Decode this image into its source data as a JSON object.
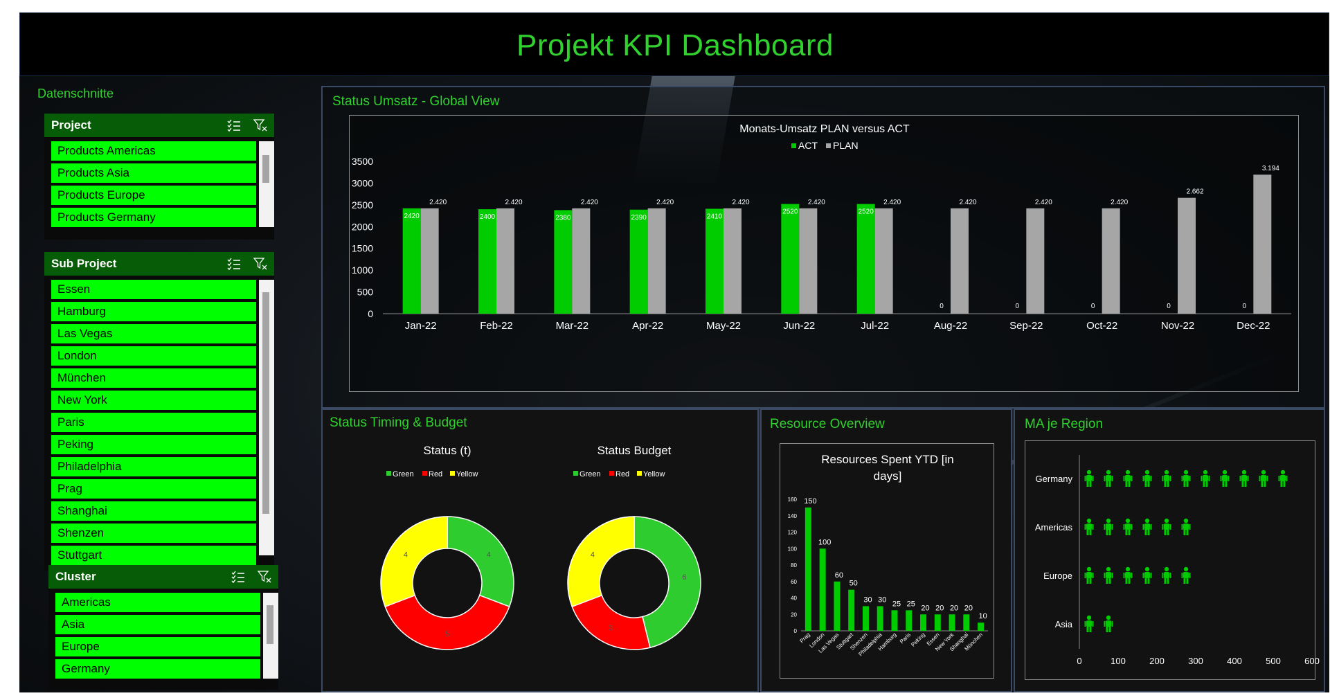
{
  "title": "Projekt KPI Dashboard",
  "slicers_section_label": "Datenschnitte",
  "slicers": [
    {
      "name": "Project",
      "items": [
        "Products Americas",
        "Products Asia",
        "Products Europe",
        "Products Germany"
      ]
    },
    {
      "name": "Sub Project",
      "items": [
        "Essen",
        "Hamburg",
        "Las Vegas",
        "London",
        "München",
        "New York",
        "Paris",
        "Peking",
        "Philadelphia",
        "Prag",
        "Shanghai",
        "Shenzen",
        "Stuttgart"
      ]
    },
    {
      "name": "Cluster",
      "items": [
        "Americas",
        "Asia",
        "Europe",
        "Germany"
      ]
    }
  ],
  "colors": {
    "accent": "#31d22f",
    "act": "#00cc00",
    "plan": "#a6a6a6",
    "slicer_item": "#00ff00",
    "slicer_head": "#075c07"
  },
  "panels": {
    "umsatz": "Status Umsatz - Global View",
    "timing": "Status Timing & Budget",
    "resource": "Resource Overview",
    "region": "MA je Region"
  },
  "chart_data": [
    {
      "type": "bar",
      "title": "Monats-Umsatz PLAN versus ACT",
      "categories": [
        "Jan-22",
        "Feb-22",
        "Mar-22",
        "Apr-22",
        "May-22",
        "Jun-22",
        "Jul-22",
        "Aug-22",
        "Sep-22",
        "Oct-22",
        "Nov-22",
        "Dec-22"
      ],
      "series": [
        {
          "name": "ACT",
          "values": [
            2420,
            2400,
            2380,
            2390,
            2410,
            2520,
            2520,
            0,
            0,
            0,
            0,
            0
          ],
          "labels": [
            "2420",
            "2400",
            "2380",
            "2390",
            "2410",
            "2520",
            "2520",
            "0",
            "0",
            "0",
            "0",
            "0"
          ]
        },
        {
          "name": "PLAN",
          "values": [
            2420,
            2420,
            2420,
            2420,
            2420,
            2420,
            2420,
            2420,
            2420,
            2420,
            2662,
            3194
          ],
          "labels": [
            "2.420",
            "2.420",
            "2.420",
            "2.420",
            "2.420",
            "2.420",
            "2.420",
            "2.420",
            "2.420",
            "2.420",
            "2.662",
            "3.194"
          ]
        }
      ],
      "ylim": [
        0,
        3500
      ],
      "yticks": [
        0,
        500,
        1000,
        1500,
        2000,
        2500,
        3000,
        3500
      ],
      "legend": "top-center",
      "grid": false
    },
    {
      "type": "pie",
      "title": "Status (t)",
      "categories": [
        "Green",
        "Red",
        "Yellow"
      ],
      "values": [
        4,
        5,
        4
      ],
      "colors": [
        "#2ecc2e",
        "#ff0000",
        "#ffff00"
      ],
      "legend": "top-center"
    },
    {
      "type": "pie",
      "title": "Status Budget",
      "categories": [
        "Green",
        "Red",
        "Yellow"
      ],
      "values": [
        6,
        3,
        4
      ],
      "colors": [
        "#2ecc2e",
        "#ff0000",
        "#ffff00"
      ],
      "legend": "top-center"
    },
    {
      "type": "bar",
      "title": "Resources Spent YTD [in days]",
      "categories": [
        "Prag",
        "London",
        "Las Vegas",
        "Stuttgart",
        "Shenzen",
        "Philadelphia",
        "Hamburg",
        "Paris",
        "Peking",
        "Essen",
        "New York",
        "Shanghai",
        "München"
      ],
      "values": [
        150,
        100,
        60,
        50,
        30,
        30,
        25,
        25,
        20,
        20,
        20,
        20,
        10
      ],
      "ylim": [
        0,
        160
      ],
      "yticks": [
        0,
        20,
        40,
        60,
        80,
        100,
        120,
        140,
        160
      ]
    },
    {
      "type": "bar",
      "orientation": "horizontal",
      "categories": [
        "Germany",
        "Americas",
        "Europe",
        "Asia"
      ],
      "values": [
        560,
        280,
        280,
        80
      ],
      "xlim": [
        0,
        600
      ],
      "xticks": [
        0,
        100,
        200,
        300,
        400,
        500,
        600
      ],
      "icon": "person-icon"
    }
  ]
}
